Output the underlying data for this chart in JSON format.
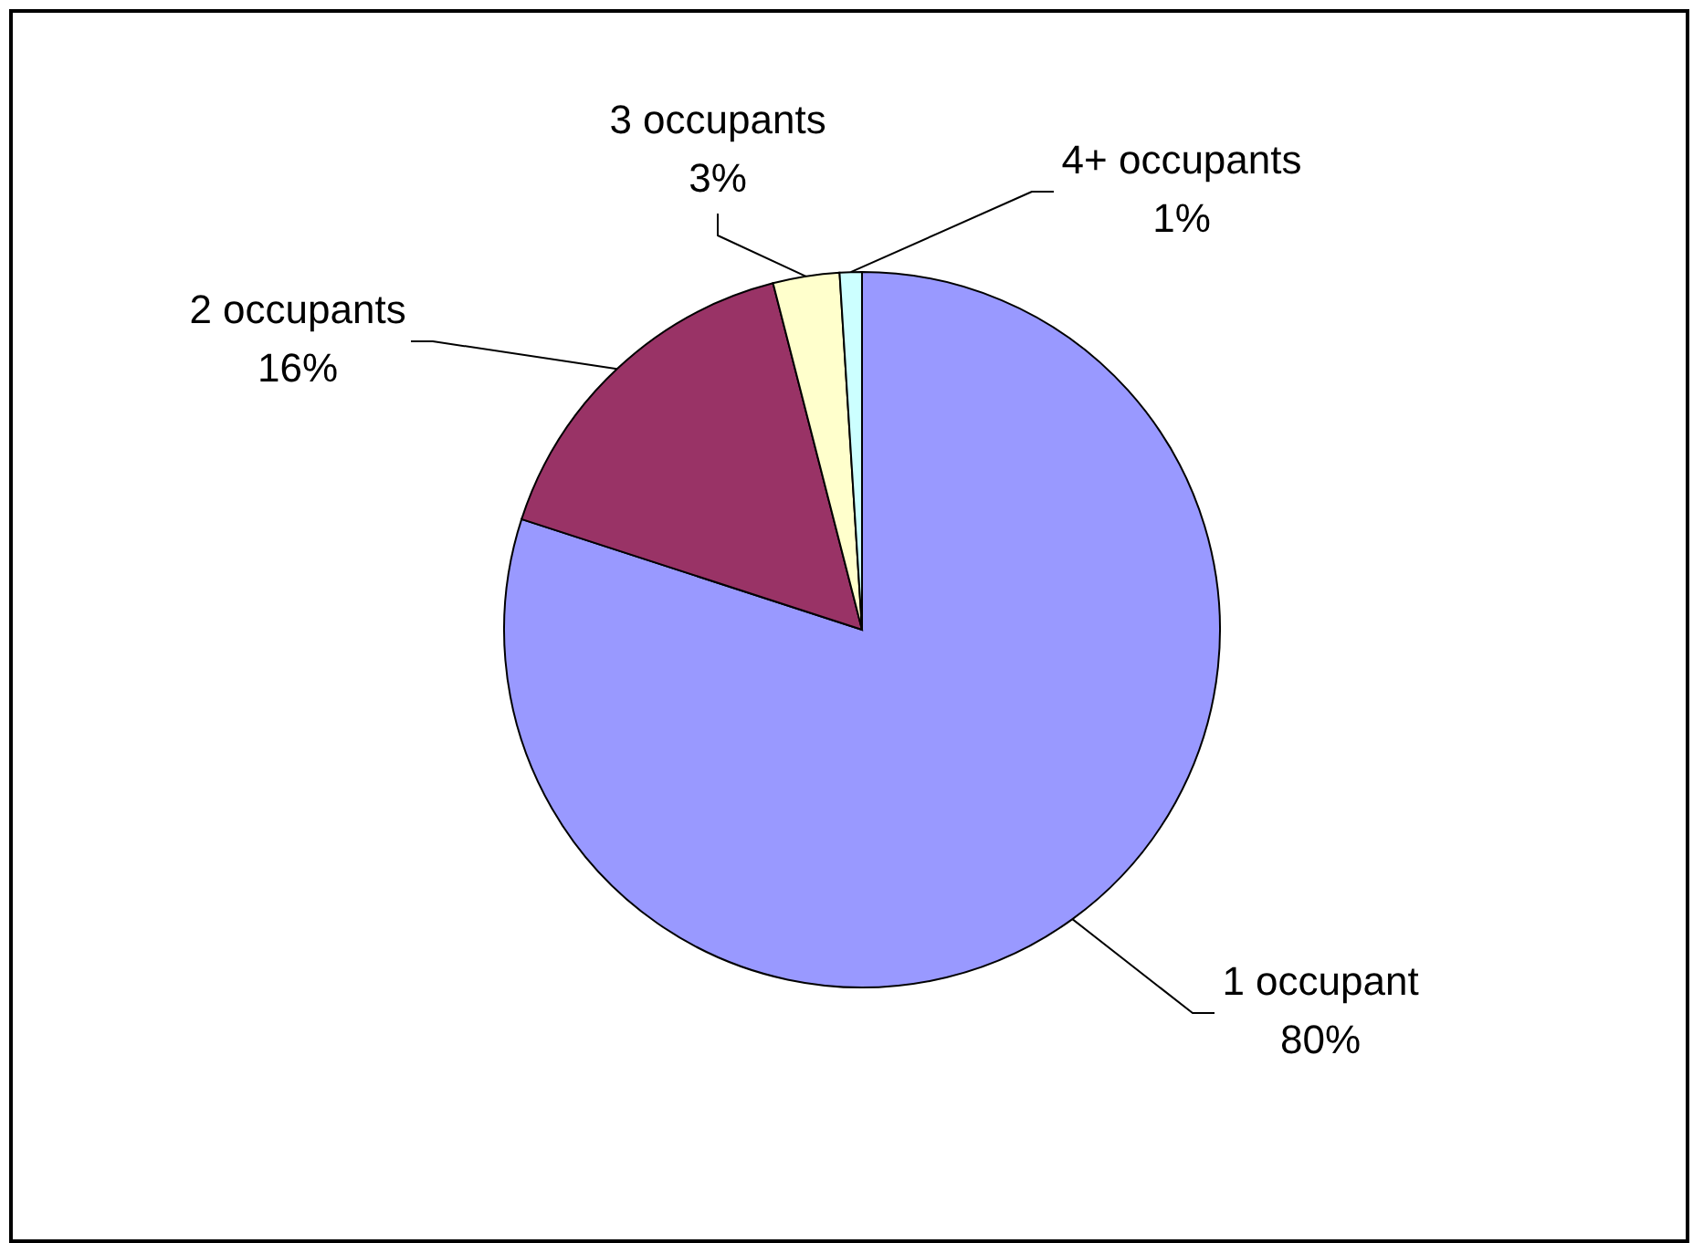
{
  "chart_data": {
    "type": "pie",
    "categories": [
      "1 occupant",
      "2 occupants",
      "3 occupants",
      "4+ occupants"
    ],
    "values": [
      80,
      16,
      3,
      1
    ],
    "colors": [
      "#9999ff",
      "#993366",
      "#ffffcc",
      "#ccffff"
    ],
    "value_labels": [
      "80%",
      "16%",
      "3%",
      "1%"
    ]
  }
}
